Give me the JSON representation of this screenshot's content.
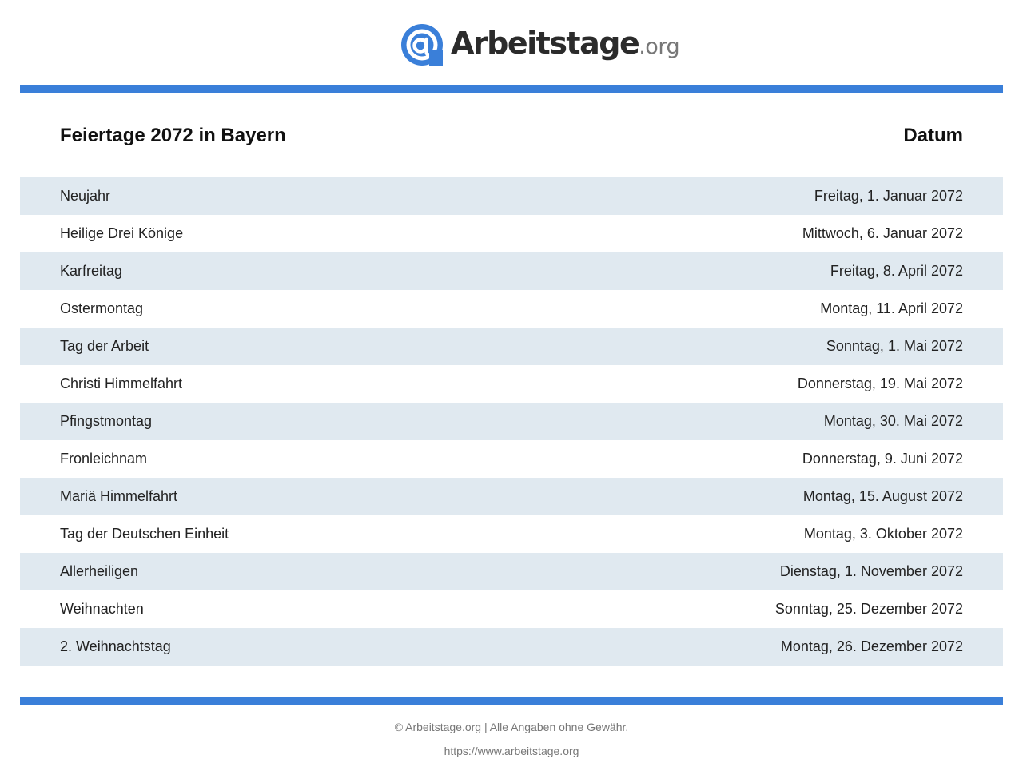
{
  "brand": {
    "name": "Arbeitstage",
    "tld": ".org",
    "icon": "at-sign-icon",
    "accent_color": "#3a7fd9"
  },
  "table": {
    "title": "Feiertage 2072 in Bayern",
    "date_header": "Datum",
    "row_alt_color": "#e0e9f0",
    "rows": [
      {
        "name": "Neujahr",
        "date": "Freitag, 1. Januar 2072"
      },
      {
        "name": "Heilige Drei Könige",
        "date": "Mittwoch, 6. Januar 2072"
      },
      {
        "name": "Karfreitag",
        "date": "Freitag, 8. April 2072"
      },
      {
        "name": "Ostermontag",
        "date": "Montag, 11. April 2072"
      },
      {
        "name": "Tag der Arbeit",
        "date": "Sonntag, 1. Mai 2072"
      },
      {
        "name": "Christi Himmelfahrt",
        "date": "Donnerstag, 19. Mai 2072"
      },
      {
        "name": "Pfingstmontag",
        "date": "Montag, 30. Mai 2072"
      },
      {
        "name": "Fronleichnam",
        "date": "Donnerstag, 9. Juni 2072"
      },
      {
        "name": "Mariä Himmelfahrt",
        "date": "Montag, 15. August 2072"
      },
      {
        "name": "Tag der Deutschen Einheit",
        "date": "Montag, 3. Oktober 2072"
      },
      {
        "name": "Allerheiligen",
        "date": "Dienstag, 1. November 2072"
      },
      {
        "name": "Weihnachten",
        "date": "Sonntag, 25. Dezember 2072"
      },
      {
        "name": "2. Weihnachtstag",
        "date": "Montag, 26. Dezember 2072"
      }
    ]
  },
  "footer": {
    "copyright": "© Arbeitstage.org | Alle Angaben ohne Gewähr.",
    "url": "https://www.arbeitstage.org"
  }
}
